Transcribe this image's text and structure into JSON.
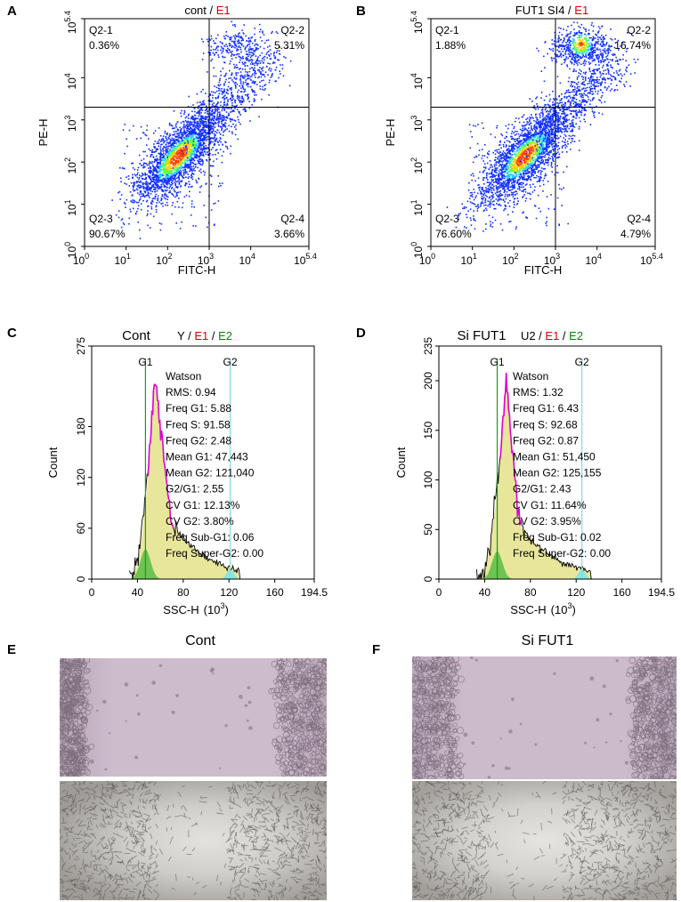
{
  "colors": {
    "dot_low": "#1030ff",
    "dot_mid": "#20d0ff",
    "dot_high": "#ff4000",
    "axis": "#000000",
    "title_red": "#dd0000",
    "title_green": "#008800",
    "hist_fill": "#e8e69a",
    "g1_fill": "#5fc04a",
    "g2_fill": "#7ee6e6",
    "magenta": "#e000d0",
    "green_line": "#1a9a1a",
    "cyan_line": "#7fe0e0",
    "plate_pink": "#cbb7c9",
    "plate_gray": "#cfcdc9"
  },
  "panels": {
    "A": {
      "letter": "A",
      "title_black": "cont / ",
      "title_red": "E1"
    },
    "B": {
      "letter": "B",
      "title_black": "FUT1 SI4 / ",
      "title_red": "E1"
    },
    "C": {
      "letter": "C",
      "title_main": "Cont",
      "title_black": "Y / ",
      "title_red": "E1",
      "title_sep": " / ",
      "title_green": "E2"
    },
    "D": {
      "letter": "D",
      "title_main": "Si FUT1",
      "title_black": "U2 / ",
      "title_red": "E1",
      "title_sep": " / ",
      "title_green": "E2"
    },
    "E": {
      "letter": "E",
      "title": "Cont"
    },
    "F": {
      "letter": "F",
      "title": "Si FUT1"
    }
  },
  "chart_data": [
    {
      "type": "scatter",
      "panel": "A",
      "title": "cont / E1",
      "xlabel": "FITC-H",
      "ylabel": "PE-H",
      "xlim": [
        0,
        5.4
      ],
      "ylim": [
        0,
        5.4
      ],
      "x_ticks": [
        {
          "base": "10",
          "exp": "0"
        },
        {
          "base": "10",
          "exp": "1"
        },
        {
          "base": "10",
          "exp": "2"
        },
        {
          "base": "10",
          "exp": "3"
        },
        {
          "base": "10",
          "exp": "4"
        },
        {
          "base": "10",
          "exp": "5.4"
        }
      ],
      "y_ticks": [
        {
          "base": "10",
          "exp": "0"
        },
        {
          "base": "10",
          "exp": "1"
        },
        {
          "base": "10",
          "exp": "2"
        },
        {
          "base": "10",
          "exp": "3"
        },
        {
          "base": "10",
          "exp": "4"
        },
        {
          "base": "10",
          "exp": "5.4"
        }
      ],
      "gate": {
        "x": 3.0,
        "y": 3.3
      },
      "quadrants": [
        {
          "name": "Q2-1",
          "value": "0.36%"
        },
        {
          "name": "Q2-2",
          "value": "5.31%"
        },
        {
          "name": "Q2-3",
          "value": "90.67%"
        },
        {
          "name": "Q2-4",
          "value": "3.66%"
        }
      ]
    },
    {
      "type": "scatter",
      "panel": "B",
      "title": "FUT1 SI4 / E1",
      "xlabel": "FITC-H",
      "ylabel": "PE-H",
      "xlim": [
        0,
        5.4
      ],
      "ylim": [
        0,
        5.4
      ],
      "x_ticks": [
        {
          "base": "10",
          "exp": "0"
        },
        {
          "base": "10",
          "exp": "1"
        },
        {
          "base": "10",
          "exp": "2"
        },
        {
          "base": "10",
          "exp": "3"
        },
        {
          "base": "10",
          "exp": "4"
        },
        {
          "base": "10",
          "exp": "5.4"
        }
      ],
      "y_ticks": [
        {
          "base": "10",
          "exp": "0"
        },
        {
          "base": "10",
          "exp": "1"
        },
        {
          "base": "10",
          "exp": "2"
        },
        {
          "base": "10",
          "exp": "3"
        },
        {
          "base": "10",
          "exp": "4"
        },
        {
          "base": "10",
          "exp": "5.4"
        }
      ],
      "gate": {
        "x": 3.0,
        "y": 3.3
      },
      "quadrants": [
        {
          "name": "Q2-1",
          "value": "1.88%"
        },
        {
          "name": "Q2-2",
          "value": "16.74%"
        },
        {
          "name": "Q2-3",
          "value": "76.60%"
        },
        {
          "name": "Q2-4",
          "value": "4.79%"
        }
      ]
    },
    {
      "type": "area",
      "panel": "C",
      "title": "Cont",
      "xlabel": "SSC-H",
      "xlabel_unit_base": "(10",
      "xlabel_unit_exp": "3",
      "xlabel_unit_close": ")",
      "ylabel": "Count",
      "xlim": [
        0,
        194.5
      ],
      "ylim": [
        0,
        275
      ],
      "x_ticks": [
        "0",
        "40",
        "80",
        "120",
        "160",
        "194.5"
      ],
      "x_tick_values": [
        0,
        40,
        80,
        120,
        160,
        194.5
      ],
      "y_ticks": [
        "0",
        "60",
        "120",
        "180",
        "275"
      ],
      "y_tick_values": [
        0,
        60,
        120,
        180,
        275
      ],
      "g1_position": 47,
      "g2_position": 121,
      "marker_labels": [
        "G1",
        "G2"
      ],
      "peak_height": 235,
      "g1_peak": 35,
      "g2_peak": 12,
      "stats": [
        "Watson",
        "RMS: 0.94",
        "Freq G1: 5.88",
        "Freq S: 91.58",
        "Freq G2: 2.48",
        "Mean G1: 47,443",
        "Mean G2: 121,040",
        "G2/G1: 2.55",
        "CV G1: 12.13%",
        "CV G2: 3.80%",
        "Freq Sub-G1: 0.06",
        "Freq Super-G2: 0.00"
      ]
    },
    {
      "type": "area",
      "panel": "D",
      "title": "Si FUT1",
      "xlabel": "SSC-H",
      "xlabel_unit_base": "(10",
      "xlabel_unit_exp": "3",
      "xlabel_unit_close": ")",
      "ylabel": "Count",
      "xlim": [
        0,
        194.5
      ],
      "ylim": [
        0,
        235
      ],
      "x_ticks": [
        "0",
        "40",
        "80",
        "120",
        "160",
        "194.5"
      ],
      "x_tick_values": [
        0,
        40,
        80,
        120,
        160,
        194.5
      ],
      "y_ticks": [
        "0",
        "50",
        "100",
        "150",
        "200",
        "235"
      ],
      "y_tick_values": [
        0,
        50,
        100,
        150,
        200,
        235
      ],
      "g1_position": 51,
      "g2_position": 125,
      "marker_labels": [
        "G1",
        "G2"
      ],
      "peak_height": 200,
      "g1_peak": 28,
      "g2_peak": 10,
      "stats": [
        "Watson",
        "RMS: 1.32",
        "Freq G1: 6.43",
        "Freq S: 92.68",
        "Freq G2: 0.87",
        "Mean G1: 51,450",
        "Mean G2: 125,155",
        "G2/G1: 2.43",
        "CV G1: 11.64%",
        "CV G2: 3.95%",
        "Freq Sub-G1: 0.02",
        "Freq Super-G2: 0.00"
      ]
    }
  ]
}
